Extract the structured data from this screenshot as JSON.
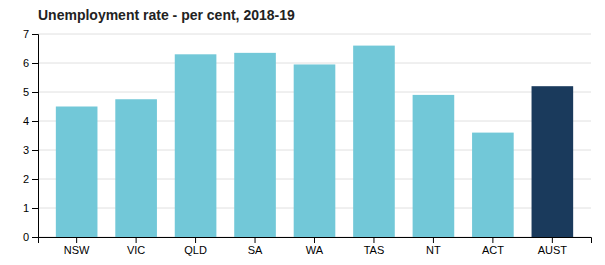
{
  "chart_data": {
    "type": "bar",
    "title": "Unemployment rate - per cent, 2018-19",
    "categories": [
      "NSW",
      "VIC",
      "QLD",
      "SA",
      "WA",
      "TAS",
      "NT",
      "ACT",
      "AUST"
    ],
    "values": [
      4.5,
      4.75,
      6.3,
      6.35,
      5.95,
      6.6,
      4.9,
      3.6,
      5.2
    ],
    "colors": [
      "#72C8D8",
      "#72C8D8",
      "#72C8D8",
      "#72C8D8",
      "#72C8D8",
      "#72C8D8",
      "#72C8D8",
      "#72C8D8",
      "#1A3A5C"
    ],
    "ylim": [
      0,
      7
    ],
    "yticks": [
      0,
      1,
      2,
      3,
      4,
      5,
      6,
      7
    ],
    "grid": true
  }
}
